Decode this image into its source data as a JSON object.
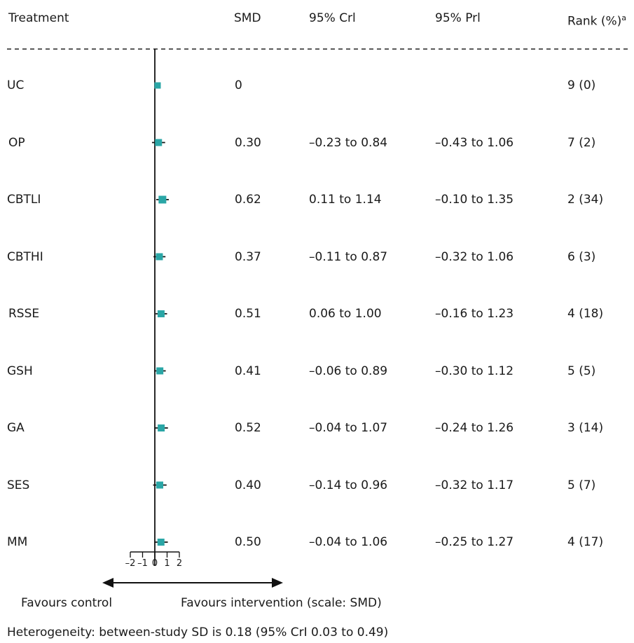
{
  "headers": {
    "treatment": "Treatment",
    "smd": "SMD",
    "crl": "95% Crl",
    "prl": "95% Prl",
    "rank": "Rank (%)",
    "rank_sup": "a"
  },
  "rows": [
    {
      "treatment": "UC",
      "smd": "0",
      "crl": "",
      "prl": "",
      "rank": "9 (0)"
    },
    {
      "treatment": "OP",
      "smd": "0.30",
      "crl": "–0.23 to 0.84",
      "prl": "–0.43 to 1.06",
      "rank": "7 (2)"
    },
    {
      "treatment": "CBTLI",
      "smd": "0.62",
      "crl": "0.11 to 1.14",
      "prl": "–0.10 to 1.35",
      "rank": "2 (34)"
    },
    {
      "treatment": "CBTHI",
      "smd": "0.37",
      "crl": "–0.11 to 0.87",
      "prl": "–0.32 to 1.06",
      "rank": "6 (3)"
    },
    {
      "treatment": "RSSE",
      "smd": "0.51",
      "crl": "0.06 to 1.00",
      "prl": "–0.16 to 1.23",
      "rank": "4 (18)"
    },
    {
      "treatment": "GSH",
      "smd": "0.41",
      "crl": "–0.06 to 0.89",
      "prl": "–0.30 to 1.12",
      "rank": "5 (5)"
    },
    {
      "treatment": "GA",
      "smd": "0.52",
      "crl": "–0.04 to 1.07",
      "prl": "–0.24 to 1.26",
      "rank": "3 (14)"
    },
    {
      "treatment": "SES",
      "smd": "0.40",
      "crl": "–0.14 to 0.96",
      "prl": "–0.32 to 1.17",
      "rank": "5 (7)"
    },
    {
      "treatment": "MM",
      "smd": "0.50",
      "crl": "–0.04 to 1.06",
      "prl": "–0.25 to 1.27",
      "rank": "4 (17)"
    }
  ],
  "axis": {
    "ticks": [
      "–2",
      "–1",
      "0",
      "1",
      "2"
    ],
    "favours_control": "Favours control",
    "favours_intervention": "Favours intervention (scale: SMD)"
  },
  "footer": "Heterogeneity: between-study SD is 0.18 (95% CrI 0.03 to 0.49)",
  "colors": {
    "marker": "#2aa6a6",
    "line": "#111111"
  },
  "chart_data": {
    "type": "forest",
    "xlim": [
      -2,
      2
    ],
    "reference_line": 0,
    "categories": [
      "UC",
      "OP",
      "CBTLI",
      "CBTHI",
      "RSSE",
      "GSH",
      "GA",
      "SES",
      "MM"
    ],
    "values": [
      0,
      0.3,
      0.62,
      0.37,
      0.51,
      0.41,
      0.52,
      0.4,
      0.5
    ],
    "ci_low": [
      null,
      -0.23,
      0.11,
      -0.11,
      0.06,
      -0.06,
      -0.04,
      -0.14,
      -0.04
    ],
    "ci_high": [
      null,
      0.84,
      1.14,
      0.87,
      1.0,
      0.89,
      1.07,
      0.96,
      1.06
    ],
    "xlabel": "Favours intervention (scale: SMD)"
  }
}
